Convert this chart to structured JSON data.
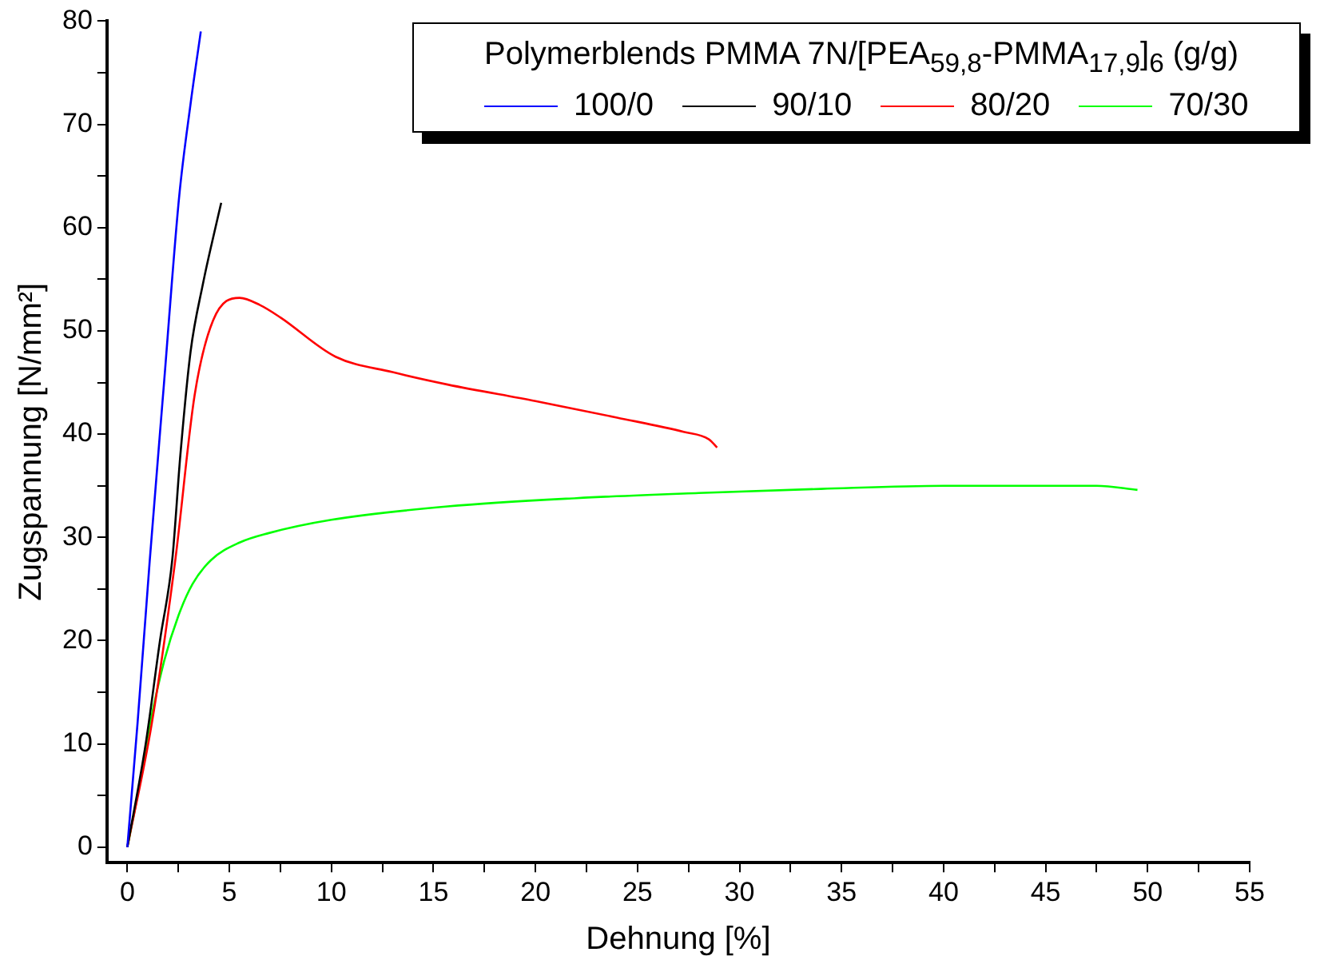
{
  "chart_data": {
    "type": "line",
    "xlabel": "Dehnung [%]",
    "ylabel": "Zugspannung [N/mm²]",
    "legend_title": "Polymerblends PMMA 7N/[PEA$_{59,8}$-PMMA$_{17,9}$]$_{6}$ (g/g)",
    "legend": "top right",
    "grid": false,
    "marker": "none",
    "line_style": "solid",
    "xlim": [
      -1,
      55
    ],
    "ylim": [
      -1.5,
      80
    ],
    "xticks": [
      0,
      {
        "value": 2.5,
        "label": null
      },
      5,
      {
        "value": 7.5,
        "label": null
      },
      10,
      {
        "value": 12.5,
        "label": null
      },
      15,
      {
        "value": 17.5,
        "label": null
      },
      20,
      {
        "value": 22.5,
        "label": null
      },
      25,
      {
        "value": 27.5,
        "label": null
      },
      30,
      {
        "value": 32.5,
        "label": null
      },
      35,
      {
        "value": 37.5,
        "label": null
      },
      40,
      {
        "value": 42.5,
        "label": null
      },
      45,
      {
        "value": 47.5,
        "label": null
      },
      50,
      {
        "value": 52.5,
        "label": null
      },
      55
    ],
    "yticks": [
      0,
      {
        "value": 5,
        "label": null
      },
      10,
      {
        "value": 15,
        "label": null
      },
      20,
      {
        "value": 25,
        "label": null
      },
      30,
      {
        "value": 35,
        "label": null
      },
      40,
      {
        "value": 45,
        "label": null
      },
      50,
      {
        "value": 55,
        "label": null
      },
      60,
      {
        "value": 65,
        "label": null
      },
      70,
      {
        "value": 75,
        "label": null
      },
      80
    ],
    "series": [
      {
        "name": "100/0",
        "color": "#0000ff",
        "x": [
          0,
          0.5,
          1.1,
          1.8,
          2.54,
          3.1,
          3.6
        ],
        "values": [
          0,
          12,
          27.8,
          45,
          63,
          72,
          79
        ]
      },
      {
        "name": "90/10",
        "color": "#000000",
        "x": [
          0,
          0.9,
          1.6,
          2.2,
          2.6,
          3.1,
          3.7,
          4.2,
          4.6
        ],
        "values": [
          0,
          10,
          20,
          27.8,
          38,
          48,
          54.5,
          59,
          62.4
        ]
      },
      {
        "name": "80/20",
        "color": "#ff0000",
        "x": [
          0,
          1.2,
          2.35,
          3.3,
          4.2,
          5.5,
          6.5,
          7.5,
          10.2,
          13,
          15.7,
          20,
          24,
          27.3,
          28.5,
          28.9
        ],
        "values": [
          0,
          12,
          27.8,
          43.8,
          51,
          53.2,
          52.5,
          51.3,
          47.5,
          46,
          44.8,
          43.2,
          41.6,
          40.2,
          39.5,
          38.7
        ]
      },
      {
        "name": "70/30",
        "color": "#00ff00",
        "x": [
          0,
          0.5,
          1.1,
          1.8,
          2.5,
          3.2,
          4.1,
          5.5,
          6.9,
          10,
          15.7,
          22,
          28,
          34,
          40,
          47.5,
          49.5
        ],
        "values": [
          0,
          5,
          11.8,
          18,
          22.4,
          25.5,
          27.8,
          29.5,
          30.4,
          31.7,
          33,
          33.8,
          34.3,
          34.7,
          35,
          35,
          34.6
        ]
      }
    ]
  }
}
